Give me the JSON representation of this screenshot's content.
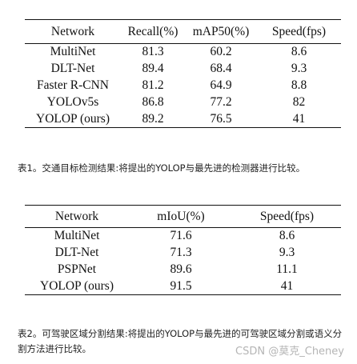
{
  "table1": {
    "headers": [
      "Network",
      "Recall(%)",
      "mAP50(%)",
      "Speed(fps)"
    ],
    "rows": [
      [
        "MultiNet",
        "81.3",
        "60.2",
        "8.6"
      ],
      [
        "DLT-Net",
        "89.4",
        "68.4",
        "9.3"
      ],
      [
        "Faster R-CNN",
        "81.2",
        "64.9",
        "8.8"
      ],
      [
        "YOLOv5s",
        "86.8",
        "77.2",
        "82"
      ],
      [
        "YOLOP (ours)",
        "89.2",
        "76.5",
        "41"
      ]
    ]
  },
  "caption1": "表1。交通目标检测结果:将提出的YOLOP与最先进的检测器进行比较。",
  "table2": {
    "headers": [
      "Network",
      "mIoU(%)",
      "Speed(fps)"
    ],
    "rows": [
      [
        "MultiNet",
        "71.6",
        "8.6"
      ],
      [
        "DLT-Net",
        "71.3",
        "9.3"
      ],
      [
        "PSPNet",
        "89.6",
        "11.1"
      ],
      [
        "YOLOP (ours)",
        "91.5",
        "41"
      ]
    ]
  },
  "caption2": "表2。可驾驶区域分割结果:将提出的YOLOP与最先进的可驾驶区域分割或语义分割方法进行比较。",
  "watermark": "CSDN @莫克_Cheney"
}
